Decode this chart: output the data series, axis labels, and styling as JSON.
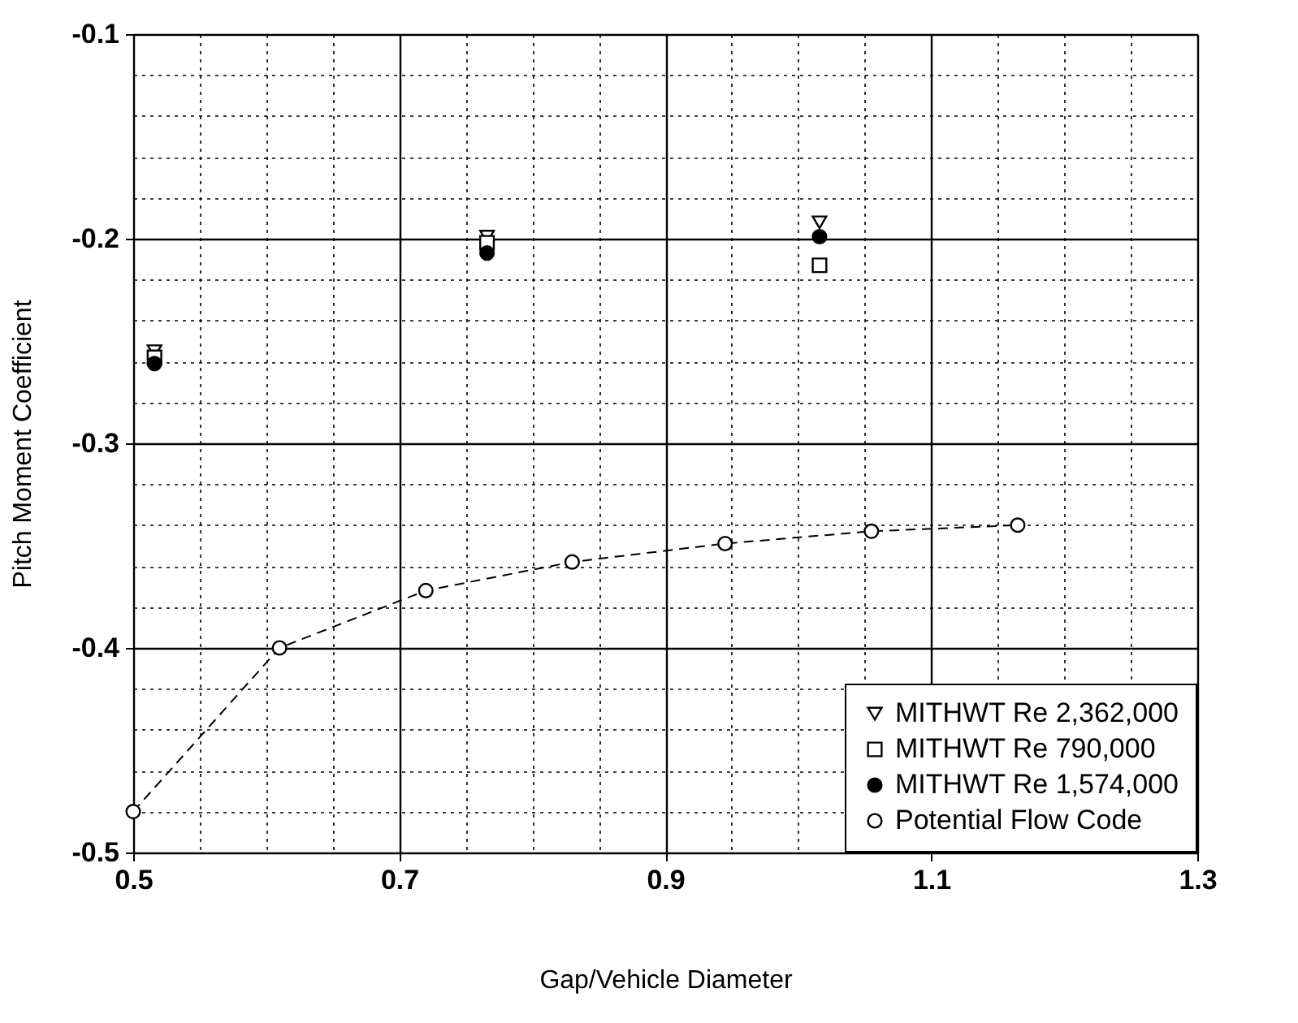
{
  "chart_data": {
    "type": "scatter",
    "xlabel": "Gap/Vehicle Diameter",
    "ylabel": "Pitch Moment Coefficient",
    "xlim": [
      0.5,
      1.3
    ],
    "ylim": [
      -0.5,
      -0.1
    ],
    "xticks": [
      0.5,
      {
        "value": 0.55,
        "label": null
      },
      {
        "value": 0.6,
        "label": null
      },
      {
        "value": 0.65,
        "label": null
      },
      0.7,
      {
        "value": 0.75,
        "label": null
      },
      {
        "value": 0.8,
        "label": null
      },
      {
        "value": 0.85,
        "label": null
      },
      0.9,
      {
        "value": 0.95,
        "label": null
      },
      {
        "value": 1.0,
        "label": null
      },
      {
        "value": 1.05,
        "label": null
      },
      1.1,
      {
        "value": 1.15,
        "label": null
      },
      {
        "value": 1.2,
        "label": null
      },
      {
        "value": 1.25,
        "label": null
      },
      1.3
    ],
    "yticks": [
      -0.5,
      {
        "value": -0.48,
        "label": null
      },
      {
        "value": -0.46,
        "label": null
      },
      {
        "value": -0.44,
        "label": null
      },
      {
        "value": -0.42,
        "label": null
      },
      -0.4,
      {
        "value": -0.38,
        "label": null
      },
      {
        "value": -0.36,
        "label": null
      },
      {
        "value": -0.34,
        "label": null
      },
      {
        "value": -0.32,
        "label": null
      },
      -0.3,
      {
        "value": -0.28,
        "label": null
      },
      {
        "value": -0.26,
        "label": null
      },
      {
        "value": -0.24,
        "label": null
      },
      {
        "value": -0.22,
        "label": null
      },
      -0.2,
      {
        "value": -0.18,
        "label": null
      },
      {
        "value": -0.16,
        "label": null
      },
      {
        "value": -0.14,
        "label": null
      },
      {
        "value": -0.12,
        "label": null
      },
      -0.1
    ],
    "grid": true,
    "legend": "bottom right",
    "series": [
      {
        "name": "MITHWT Re 2,362,000",
        "color": "#000000",
        "marker": "triangle",
        "x": [
          0.516,
          0.766,
          1.016
        ],
        "values": [
          -0.255,
          -0.199,
          -0.192
        ]
      },
      {
        "name": "MITHWT Re 790,000",
        "color": "#000000",
        "marker": "square",
        "x": [
          0.516,
          0.766,
          1.016
        ],
        "values": [
          -0.258,
          -0.202,
          -0.213
        ]
      },
      {
        "name": "MITHWT Re 1,574,000",
        "color": "#000000",
        "marker": "circle",
        "x": [
          0.516,
          0.766,
          1.016
        ],
        "values": [
          -0.261,
          -0.207,
          -0.199
        ]
      },
      {
        "name": "Potential Flow Code",
        "color": "#000000",
        "type": "line",
        "marker": "circle",
        "line_style": "dashed",
        "x": [
          0.5,
          0.61,
          0.72,
          0.83,
          0.945,
          1.055,
          1.165
        ],
        "values": [
          -0.48,
          -0.4,
          -0.372,
          -0.358,
          -0.349,
          -0.343,
          -0.34
        ]
      }
    ]
  }
}
